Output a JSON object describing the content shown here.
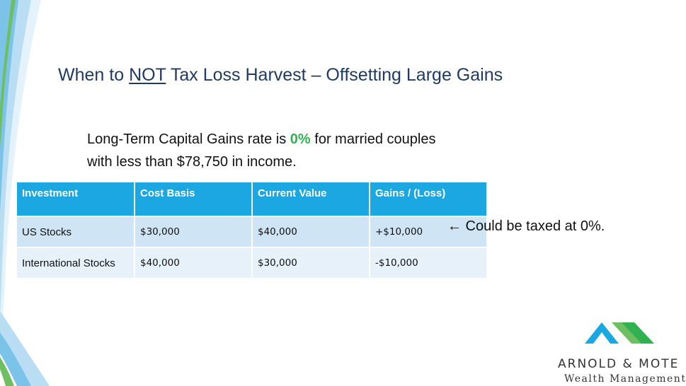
{
  "slide": {
    "title_pre": "When to ",
    "title_underlined": "NOT",
    "title_post": " Tax Loss Harvest – Offsetting Large Gains",
    "intro_pre": "Long-Term Capital Gains rate is ",
    "intro_rate": "0%",
    "intro_post": " for married couples with less than $78,750 in income.",
    "callout": "← Could be taxed at 0%."
  },
  "table": {
    "headers": [
      "Investment",
      "Cost Basis",
      "Current Value",
      "Gains / (Loss)"
    ],
    "rows": [
      [
        "US Stocks",
        "$30,000",
        "$40,000",
        "+$10,000"
      ],
      [
        "International Stocks",
        "$40,000",
        "$30,000",
        "-$10,000"
      ]
    ]
  },
  "colors": {
    "header_bg": "#1ba7e2",
    "row1_bg": "#cfe4f4",
    "row2_bg": "#e6f1fa",
    "gain": "#2fb24f",
    "loss": "#e2232a",
    "title": "#1f3b64"
  },
  "logo": {
    "icon": "mountain-peaks-icon",
    "name": "ARNOLD & MOTE",
    "subtitle": "Wealth Management"
  }
}
